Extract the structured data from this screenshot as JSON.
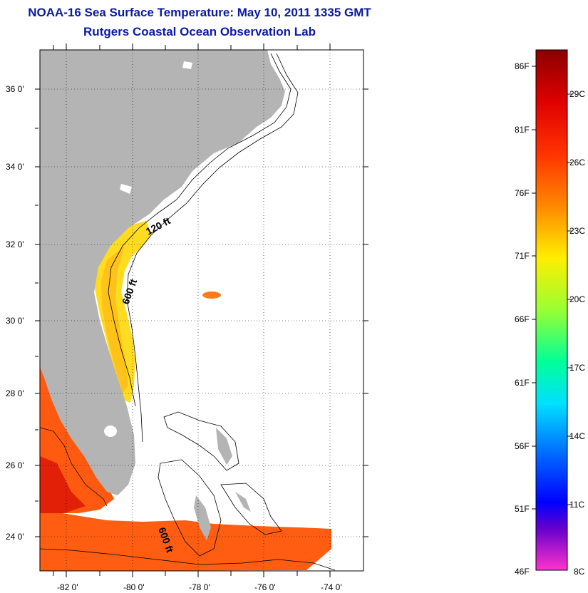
{
  "title": "NOAA-16 Sea Surface Temperature:  May 10, 2011 1335 GMT",
  "subtitle": "Rutgers Coastal Ocean Observation Lab",
  "map": {
    "lon_ticks": [
      "-82 0'",
      "-80 0'",
      "-78 0'",
      "-76 0'",
      "-74 0'"
    ],
    "lat_ticks": [
      "24 0'",
      "26 0'",
      "28 0'",
      "30 0'",
      "32 0'",
      "34 0'",
      "36 0'"
    ],
    "contour_labels": [
      "120 ft",
      "600 ft",
      "600 ft"
    ],
    "colors": {
      "land": "#b4b4b4",
      "ocean_bg": "#ffffff",
      "grid": "#000000"
    }
  },
  "colorbar": {
    "fahrenheit_labels": [
      "86F",
      "81F",
      "76F",
      "71F",
      "66F",
      "61F",
      "56F",
      "51F",
      "46F"
    ],
    "celsius_labels": [
      "29C",
      "26C",
      "23C",
      "20C",
      "17C",
      "14C",
      "11C",
      "8C"
    ],
    "colors_top_to_bottom": [
      "#8b0000",
      "#ff0000",
      "#ff7f00",
      "#ffff00",
      "#7fff00",
      "#00ff7f",
      "#00ffff",
      "#0080ff",
      "#0000ff",
      "#8000c0",
      "#ff00ff"
    ]
  }
}
